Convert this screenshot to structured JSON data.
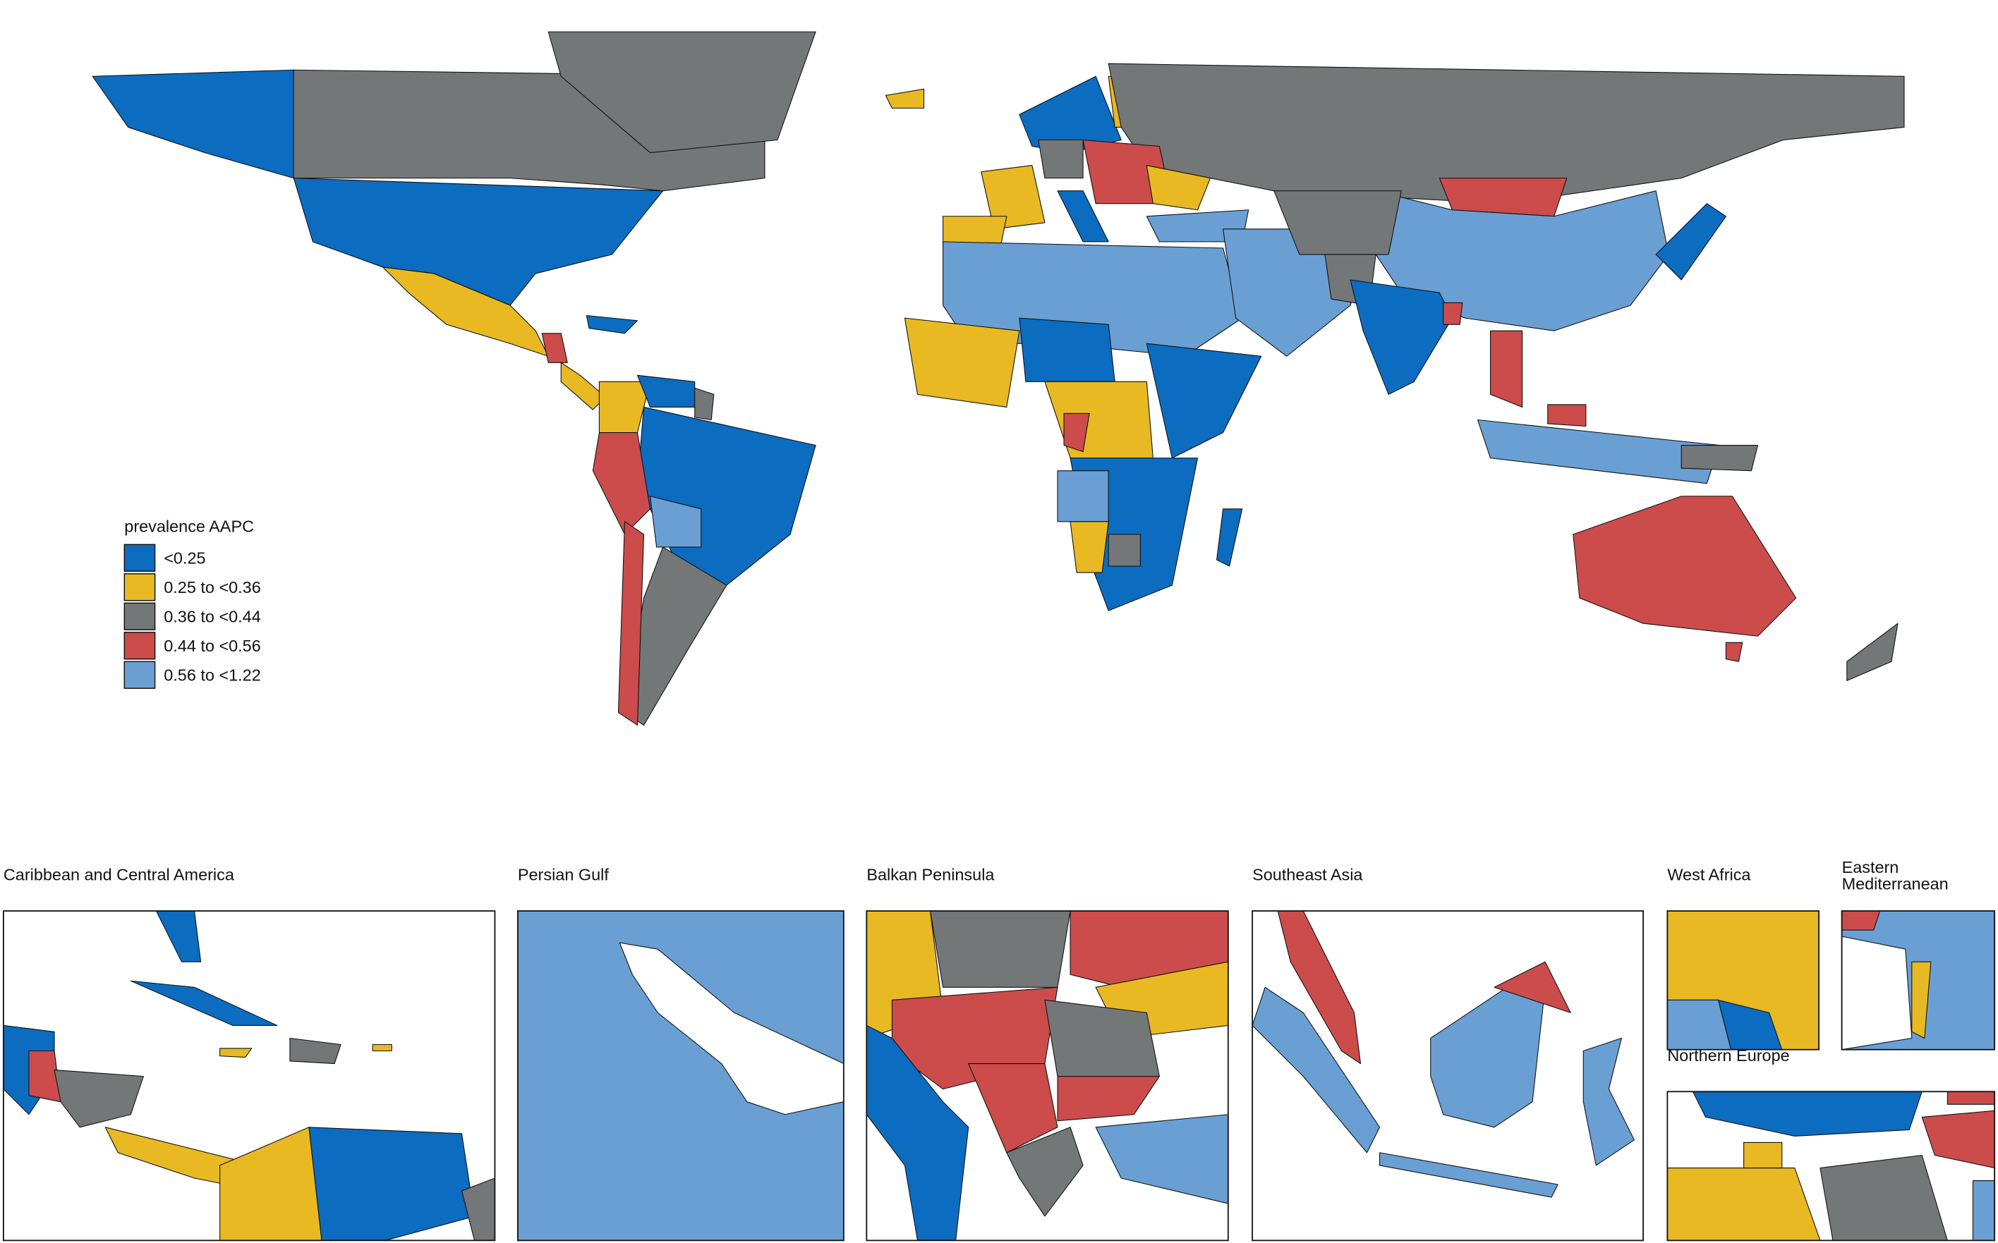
{
  "legend": {
    "title": "prevalence AAPC",
    "items": [
      {
        "label": "<0.25",
        "color": "#0b6cc0"
      },
      {
        "label": "0.25 to <0.36",
        "color": "#e8b923"
      },
      {
        "label": "0.36 to <0.44",
        "color": "#747777"
      },
      {
        "label": "0.44 to <0.56",
        "color": "#cb4c4b"
      },
      {
        "label": "0.56 to <1.22",
        "color": "#6a9fd4"
      }
    ]
  },
  "insets": [
    {
      "title": "Caribbean and Central America"
    },
    {
      "title": "Persian Gulf"
    },
    {
      "title": "Balkan Peninsula"
    },
    {
      "title": "Southeast Asia"
    },
    {
      "title": "West Africa"
    },
    {
      "title": [
        "Eastern",
        "Mediterranean"
      ]
    },
    {
      "title": "Northern Europe"
    }
  ]
}
